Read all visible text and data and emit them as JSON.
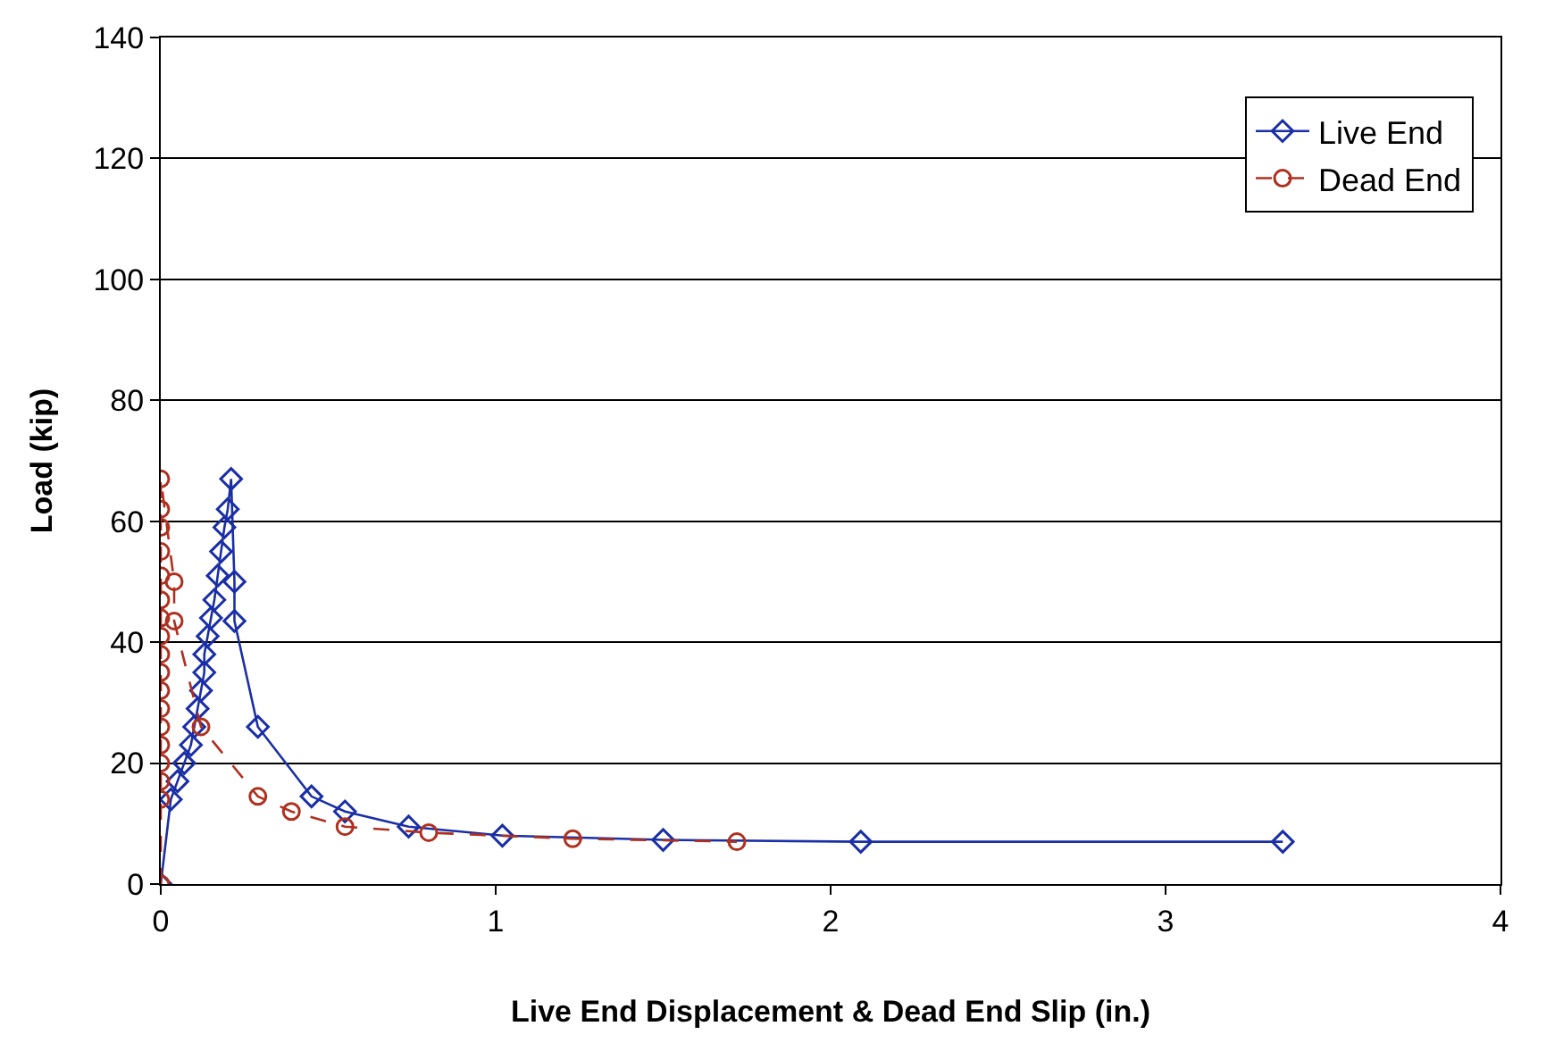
{
  "chart_data": {
    "type": "line",
    "xlabel": "Live End Displacement & Dead End Slip (in.)",
    "ylabel": "Load (kip)",
    "xlim": [
      0,
      4
    ],
    "xticks": [
      0,
      1,
      2,
      3,
      4
    ],
    "ylim": [
      0,
      140
    ],
    "yticks": [
      0,
      20,
      40,
      60,
      80,
      100,
      120,
      140
    ],
    "grid": "y",
    "legend": "top right",
    "series": [
      {
        "name": "Live End",
        "color": "#1a2ea6",
        "marker": "diamond",
        "line_style": "solid",
        "x": [
          0,
          0.03,
          0.05,
          0.07,
          0.09,
          0.1,
          0.11,
          0.12,
          0.13,
          0.13,
          0.14,
          0.15,
          0.16,
          0.17,
          0.18,
          0.19,
          0.2,
          0.21,
          0.22,
          0.22,
          0.29,
          0.45,
          0.55,
          0.74,
          1.02,
          1.5,
          2.09,
          3.35
        ],
        "values": [
          0,
          14,
          17,
          20,
          23,
          26,
          29,
          32,
          35,
          38,
          41,
          44,
          47,
          51,
          55,
          59,
          62,
          67,
          50,
          43.5,
          26,
          14.5,
          12,
          9.5,
          8,
          7.3,
          7,
          7
        ]
      },
      {
        "name": "Dead End",
        "color": "#b03020",
        "marker": "circle",
        "line_style": "dashed",
        "x": [
          0,
          0,
          0,
          0,
          0,
          0,
          0,
          0,
          0,
          0,
          0,
          0,
          0,
          0,
          0,
          0,
          0,
          0,
          0.04,
          0.04,
          0.12,
          0.29,
          0.39,
          0.55,
          0.8,
          1.23,
          1.72
        ],
        "values": [
          0,
          14,
          17,
          20,
          23,
          26,
          29,
          32,
          35,
          38,
          41,
          44,
          47,
          51,
          55,
          59,
          62,
          67,
          50,
          43.5,
          26,
          14.5,
          12,
          9.5,
          8.5,
          7.5,
          7
        ]
      }
    ]
  }
}
